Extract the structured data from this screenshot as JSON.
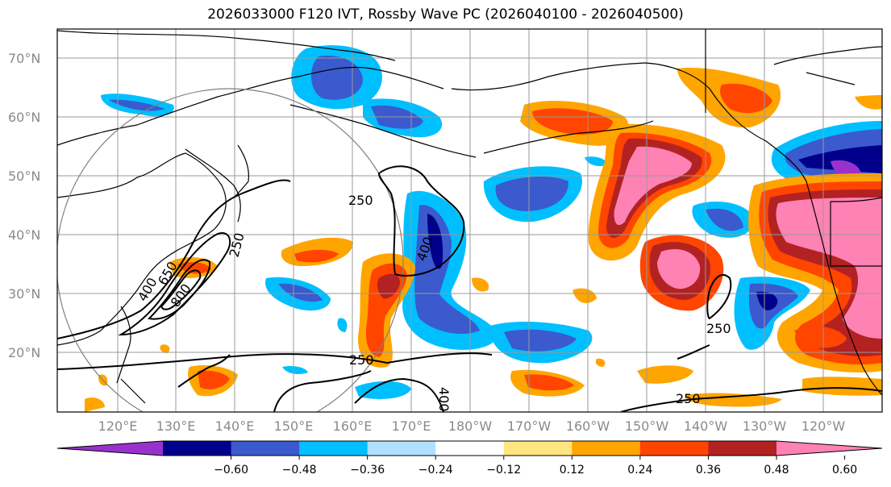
{
  "title": "2026033000 F120 IVT, Rossby Wave PC (2026040100 - 2026040500)",
  "latitude_labels": [
    "70°N",
    "60°N",
    "50°N",
    "40°N",
    "30°N",
    "20°N"
  ],
  "longitude_labels": [
    "120°E",
    "130°E",
    "140°E",
    "150°E",
    "160°E",
    "170°E",
    "180°W",
    "170°W",
    "160°W",
    "150°W",
    "140°W",
    "130°W",
    "120°W"
  ],
  "contour_labels": [
    "250",
    "250",
    "250",
    "250",
    "250",
    "400",
    "400",
    "400",
    "650",
    "800"
  ],
  "colorbar": {
    "tick_labels": [
      "−0.60",
      "−0.48",
      "−0.36",
      "−0.24",
      "−0.12",
      "0.12",
      "0.24",
      "0.36",
      "0.48",
      "0.60"
    ],
    "colors": [
      "#9932cc",
      "#00008b",
      "#3a5acd",
      "#00bfff",
      "#b0e0ff",
      "#ffffff",
      "#ffe680",
      "#ffa500",
      "#ff4500",
      "#b22222",
      "#ff82b4"
    ]
  },
  "colors": {
    "coast": "#000000",
    "grid": "#999999",
    "circle": "#808080"
  }
}
